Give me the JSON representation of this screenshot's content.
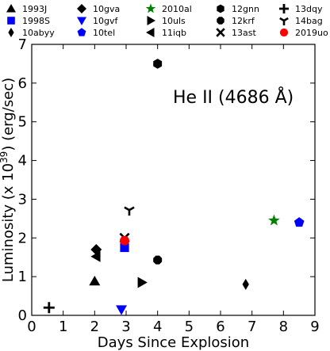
{
  "chart_data": {
    "type": "scatter",
    "title": "",
    "xlabel": "Days Since Explosion",
    "ylabel": "Luminosity (x 10",
    "ylabel_sup": "39",
    "ylabel_tail": ") (erg/sec)",
    "xlim": [
      0,
      9
    ],
    "ylim": [
      0,
      7
    ],
    "xticks": [
      "0",
      "1",
      "2",
      "3",
      "4",
      "5",
      "6",
      "7",
      "8",
      "9"
    ],
    "yticks": [
      "0",
      "1",
      "2",
      "3",
      "4",
      "5",
      "6",
      "7"
    ],
    "annotation": "He II (4686 Å)",
    "legend_placement": "top, outside plot, 6 columns",
    "series": [
      {
        "name": "1993J",
        "marker": "triangle-up",
        "color": "#000000",
        "points": [
          [
            2.0,
            0.88
          ]
        ]
      },
      {
        "name": "1998S",
        "marker": "square",
        "color": "#0000ff",
        "points": [
          [
            2.95,
            1.75
          ]
        ]
      },
      {
        "name": "10abyy",
        "marker": "thin-diamond",
        "color": "#000000",
        "points": [
          [
            6.8,
            0.8
          ]
        ]
      },
      {
        "name": "10gva",
        "marker": "diamond",
        "color": "#000000",
        "points": [
          [
            2.05,
            1.7
          ]
        ]
      },
      {
        "name": "10gvf",
        "marker": "triangle-down",
        "color": "#0000ff",
        "points": [
          [
            2.85,
            0.15
          ]
        ]
      },
      {
        "name": "10tel",
        "marker": "pentagon",
        "color": "#0000ff",
        "points": [
          [
            8.5,
            2.4
          ]
        ]
      },
      {
        "name": "2010al",
        "marker": "star",
        "color": "#008000",
        "points": [
          [
            7.7,
            2.45
          ]
        ]
      },
      {
        "name": "10uls",
        "marker": "triangle-right",
        "color": "#000000",
        "points": [
          [
            3.5,
            0.85
          ]
        ]
      },
      {
        "name": "11iqb",
        "marker": "triangle-left",
        "color": "#000000",
        "points": [
          [
            2.05,
            1.52
          ]
        ]
      },
      {
        "name": "12gnn",
        "marker": "hexagon",
        "color": "#000000",
        "points": [
          [
            4.0,
            6.5
          ]
        ]
      },
      {
        "name": "12krf",
        "marker": "octagon",
        "color": "#000000",
        "points": [
          [
            4.0,
            1.43
          ]
        ]
      },
      {
        "name": "13ast",
        "marker": "x",
        "color": "#000000",
        "points": [
          [
            2.95,
            2.0
          ]
        ]
      },
      {
        "name": "13dqy",
        "marker": "plus",
        "color": "#000000",
        "points": [
          [
            0.55,
            0.2
          ]
        ]
      },
      {
        "name": "14bag",
        "marker": "tri-down",
        "color": "#000000",
        "points": [
          [
            3.1,
            2.72
          ]
        ]
      },
      {
        "name": "2019uo",
        "marker": "circle",
        "color": "#ff0000",
        "points": [
          [
            2.95,
            1.93
          ]
        ]
      }
    ]
  }
}
